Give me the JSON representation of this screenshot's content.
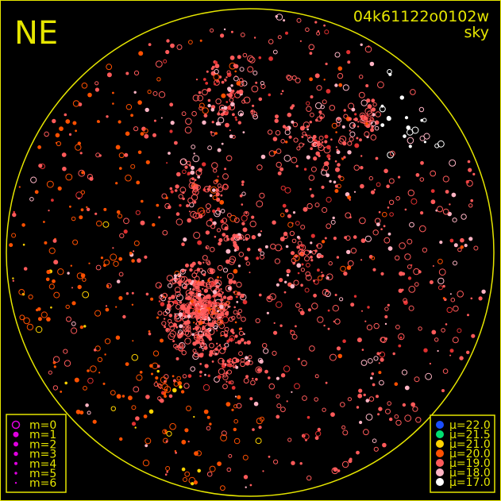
{
  "chart_data": {
    "type": "scatter",
    "title": "04k61122o0102w",
    "subtitle": "sky",
    "orientation_label": "NE",
    "size_legend": [
      {
        "label": "m=0",
        "style": "ring"
      },
      {
        "label": "m=1",
        "style": "filled"
      },
      {
        "label": "m=2",
        "style": "filled"
      },
      {
        "label": "m=3",
        "style": "filled"
      },
      {
        "label": "m=4",
        "style": "filled"
      },
      {
        "label": "m=5",
        "style": "filled"
      },
      {
        "label": "m=6",
        "style": "filled"
      }
    ],
    "color_legend": [
      {
        "label": "μ=22.0",
        "color": "#1a4dff"
      },
      {
        "label": "μ=21.5",
        "color": "#00e070"
      },
      {
        "label": "μ=21.0",
        "color": "#ffd400"
      },
      {
        "label": "μ=20.0",
        "color": "#ff5000"
      },
      {
        "label": "μ=19.0",
        "color": "#ff5a5a"
      },
      {
        "label": "μ=18.0",
        "color": "#ffb4c4"
      },
      {
        "label": "μ=17.0",
        "color": "#ffffff"
      }
    ],
    "frame_color": "#e6e600",
    "background": "#000000"
  }
}
